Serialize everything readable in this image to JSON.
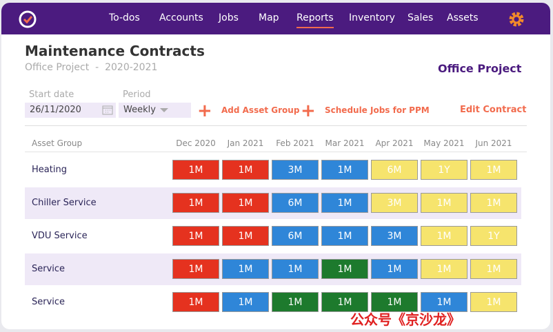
{
  "nav": {
    "items": [
      "To-dos",
      "Accounts",
      "Jobs",
      "Map",
      "Reports",
      "Inventory",
      "Sales",
      "Assets"
    ],
    "active": 4
  },
  "header": {
    "title": "Maintenance Contracts",
    "project": "Office Project",
    "separator": "-",
    "years": "2020-2021",
    "project_badge": "Office Project"
  },
  "form": {
    "start_date_label": "Start date",
    "start_date": "26/11/2020",
    "period_label": "Period",
    "period": "Weekly",
    "add_asset_group": "Add Asset Group",
    "schedule_jobs": "Schedule Jobs for PPM",
    "edit_contract": "Edit Contract"
  },
  "table": {
    "header": [
      "Asset Group",
      "Dec 2020",
      "Jan 2021",
      "Feb 2021",
      "Mar 2021",
      "Apr 2021",
      "May 2021",
      "Jun 2021"
    ],
    "rows": [
      {
        "name": "Heating",
        "cells": [
          {
            "text": "1M",
            "color": "#e5321f"
          },
          {
            "text": "1M",
            "color": "#e5321f"
          },
          {
            "text": "3M",
            "color": "#2f86d8"
          },
          {
            "text": "1M",
            "color": "#2f86d8"
          },
          {
            "text": "6M",
            "color": "#f6e46d"
          },
          {
            "text": "1Y",
            "color": "#f6e46d"
          },
          {
            "text": "1M",
            "color": "#f6e46d"
          }
        ]
      },
      {
        "name": "Chiller Service",
        "cells": [
          {
            "text": "1M",
            "color": "#e5321f"
          },
          {
            "text": "1M",
            "color": "#e5321f"
          },
          {
            "text": "6M",
            "color": "#2f86d8"
          },
          {
            "text": "1M",
            "color": "#2f86d8"
          },
          {
            "text": "3M",
            "color": "#f6e46d"
          },
          {
            "text": "1M",
            "color": "#f6e46d"
          },
          {
            "text": "1M",
            "color": "#f6e46d"
          }
        ]
      },
      {
        "name": "VDU Service",
        "cells": [
          {
            "text": "1M",
            "color": "#e5321f"
          },
          {
            "text": "1M",
            "color": "#e5321f"
          },
          {
            "text": "6M",
            "color": "#2f86d8"
          },
          {
            "text": "1M",
            "color": "#2f86d8"
          },
          {
            "text": "3M",
            "color": "#2f86d8"
          },
          {
            "text": "1M",
            "color": "#f6e46d"
          },
          {
            "text": "1Y",
            "color": "#f6e46d"
          }
        ]
      },
      {
        "name": "Service",
        "cells": [
          {
            "text": "1M",
            "color": "#e5321f"
          },
          {
            "text": "1M",
            "color": "#2f86d8"
          },
          {
            "text": "1M",
            "color": "#2f86d8"
          },
          {
            "text": "1M",
            "color": "#1d7a2d"
          },
          {
            "text": "1M",
            "color": "#2f86d8"
          },
          {
            "text": "1M",
            "color": "#f6e46d"
          },
          {
            "text": "1M",
            "color": "#f6e46d"
          }
        ]
      },
      {
        "name": "Service",
        "cells": [
          {
            "text": "1M",
            "color": "#e5321f"
          },
          {
            "text": "1M",
            "color": "#2f86d8"
          },
          {
            "text": "1M",
            "color": "#1d7a2d"
          },
          {
            "text": "1M",
            "color": "#1d7a2d"
          },
          {
            "text": "1M",
            "color": "#1d7a2d"
          },
          {
            "text": "1M",
            "color": "#2f86d8"
          },
          {
            "text": "1M",
            "color": "#f6e46d"
          }
        ]
      }
    ]
  },
  "watermark": "公众号《京沙龙》"
}
